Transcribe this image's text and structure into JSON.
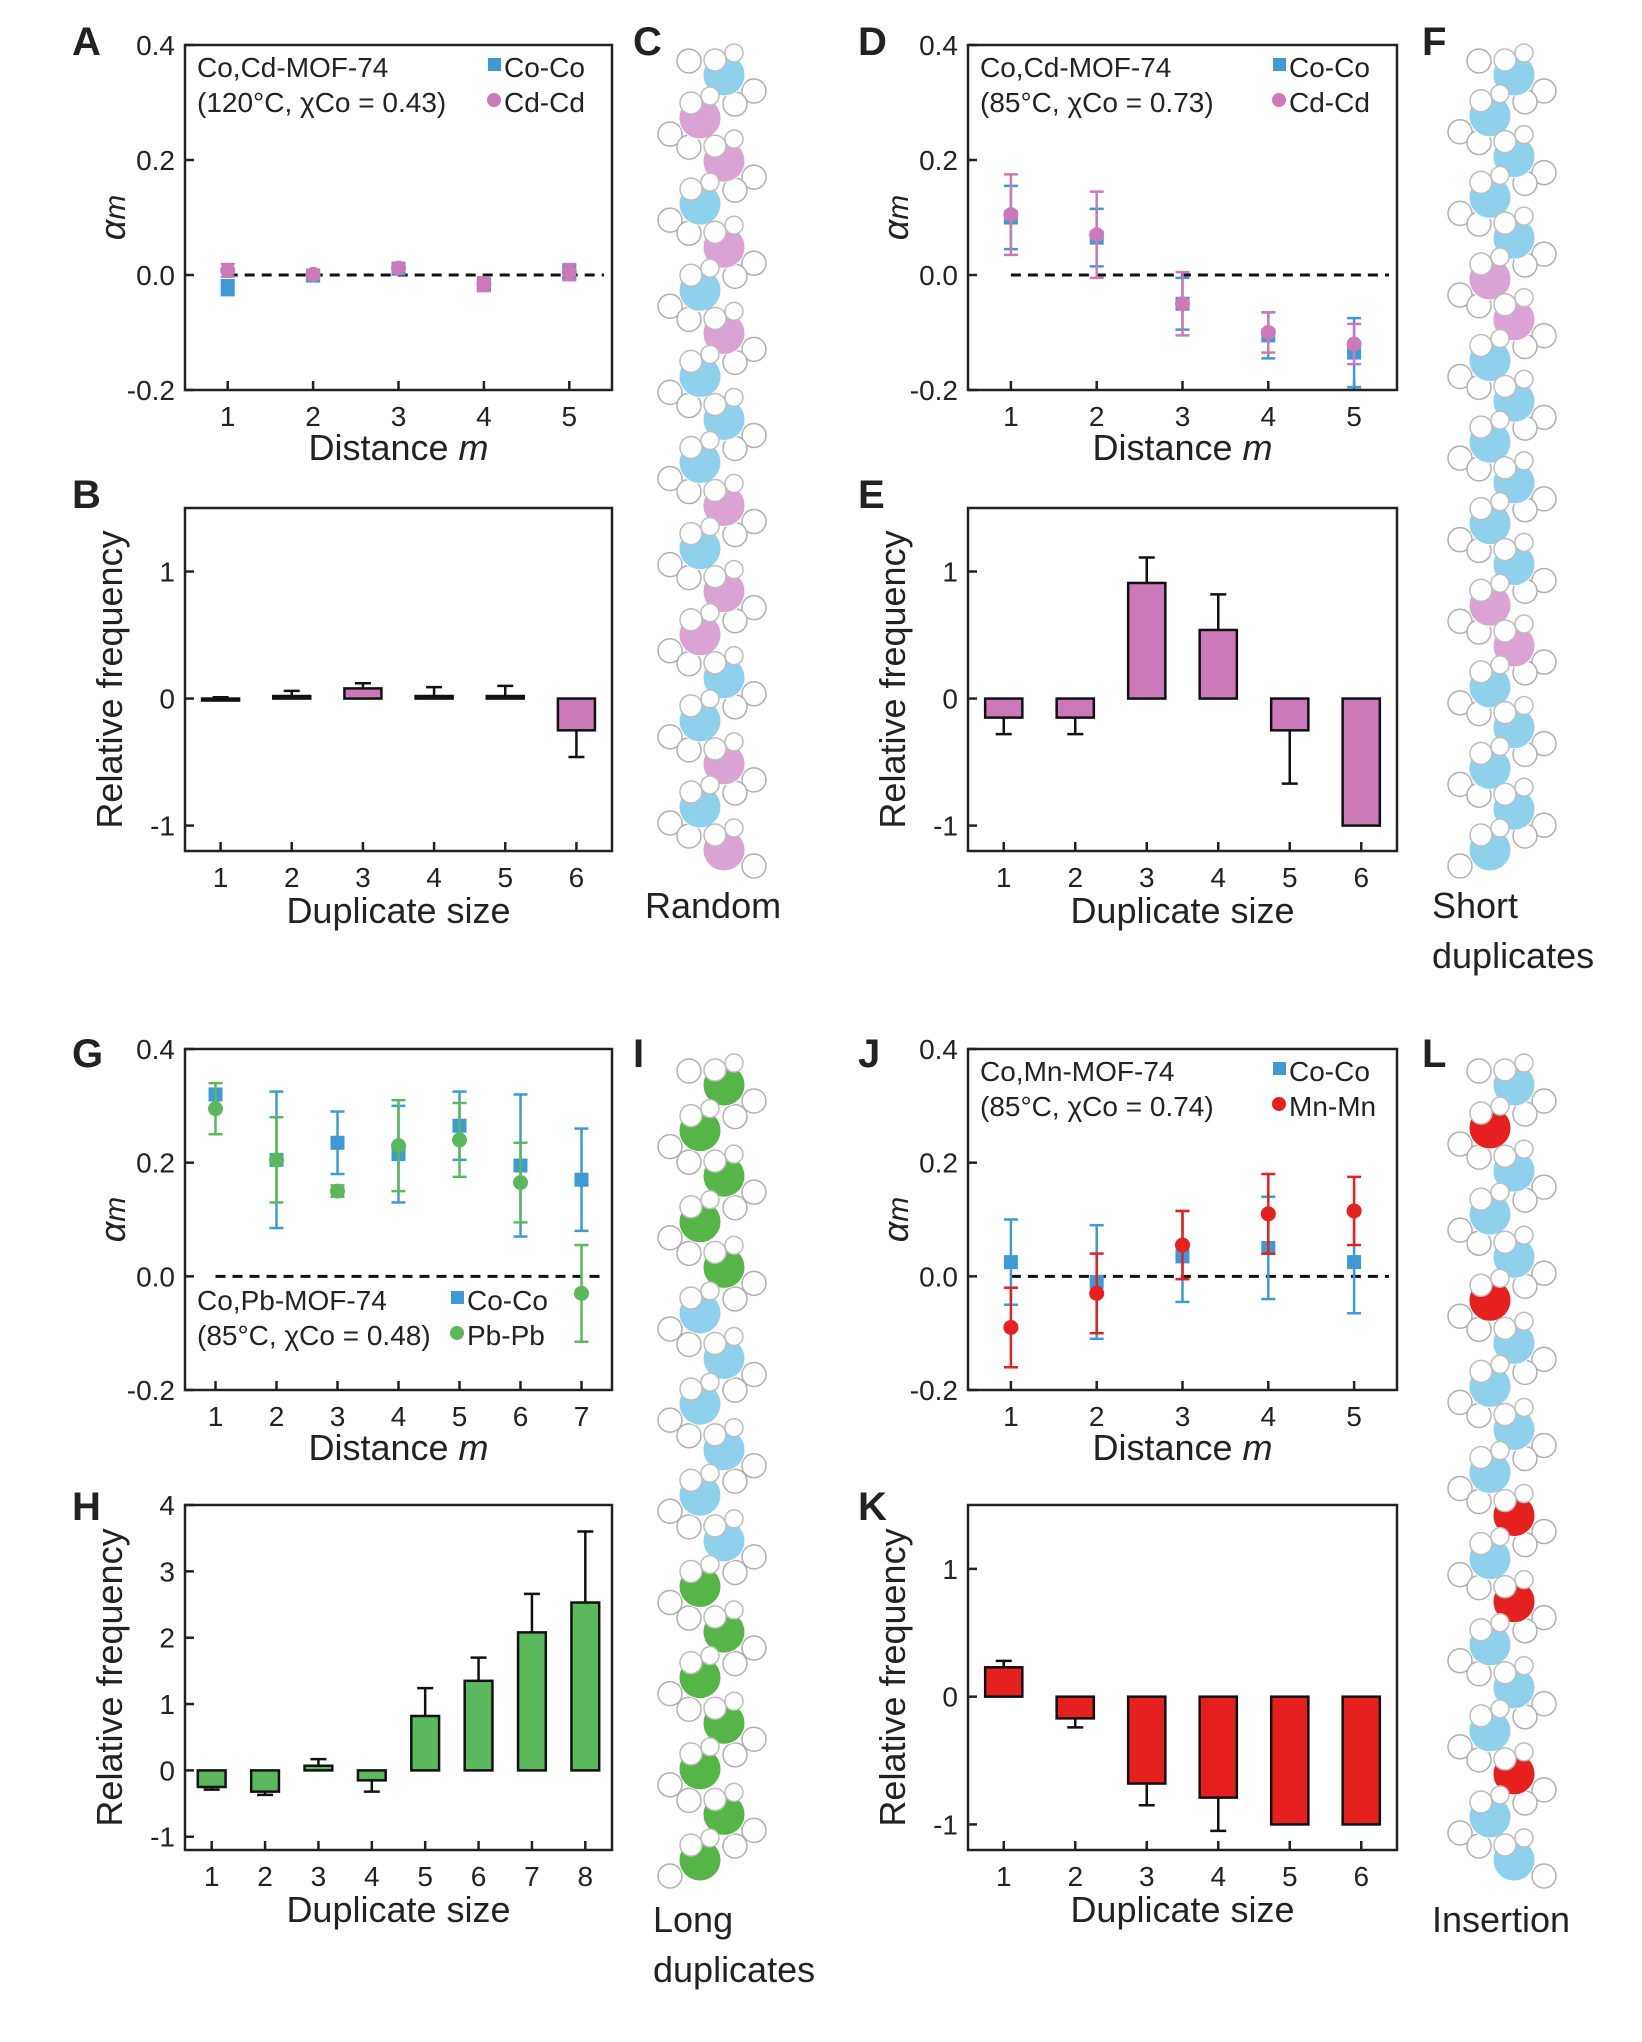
{
  "figure": {
    "panel_letters": {
      "A": "A",
      "B": "B",
      "C": "C",
      "D": "D",
      "E": "E",
      "F": "F",
      "G": "G",
      "H": "H",
      "I": "I",
      "J": "J",
      "K": "K",
      "L": "L"
    },
    "chain_captions": {
      "C": [
        "Random"
      ],
      "F": [
        "Short",
        "duplicates"
      ],
      "I": [
        "Long",
        "duplicates"
      ],
      "L": [
        "Insertion"
      ]
    },
    "chains": {
      "C": [
        "Co",
        "Cd",
        "Cd",
        "Co",
        "Cd",
        "Co",
        "Cd",
        "Co",
        "Co",
        "Co",
        "Cd",
        "Co",
        "Cd",
        "Cd",
        "Co",
        "Co",
        "Cd",
        "Co",
        "Cd"
      ],
      "F": [
        "Co",
        "Co",
        "Co",
        "Co",
        "Co",
        "Cd",
        "Cd",
        "Co",
        "Co",
        "Co",
        "Co",
        "Co",
        "Co",
        "Cd",
        "Cd",
        "Co",
        "Co",
        "Co",
        "Co",
        "Co"
      ],
      "I": [
        "Pb",
        "Pb",
        "Pb",
        "Pb",
        "Pb",
        "Co",
        "Co",
        "Co",
        "Co",
        "Co",
        "Co",
        "Pb",
        "Pb",
        "Pb",
        "Pb",
        "Pb",
        "Pb",
        "Pb"
      ],
      "L": [
        "Co",
        "Mn",
        "Co",
        "Co",
        "Co",
        "Mn",
        "Co",
        "Co",
        "Co",
        "Co",
        "Mn",
        "Co",
        "Mn",
        "Co",
        "Co",
        "Co",
        "Mn",
        "Co",
        "Co"
      ]
    },
    "colors": {
      "Co": "#8fd1ec",
      "Cd": "#dba2d4",
      "Pb": "#55b546",
      "Mn": "#e5201f",
      "bar_Cd": "#cc79b9",
      "bar_Pb": "#5cb85c",
      "bar_Mn": "#e5201f",
      "marker_Co": "#3e9ad4"
    }
  },
  "chart_data": [
    {
      "panel": "A",
      "type": "scatter",
      "annotation": [
        "Co,Cd-MOF-74",
        "(120°C, χCo = 0.43)"
      ],
      "xlabel": "Distance m",
      "ylabel": "αm",
      "xlim": [
        0.5,
        5.5
      ],
      "ylim": [
        -0.2,
        0.4
      ],
      "x": [
        1,
        2,
        3,
        4,
        5
      ],
      "xticks": [
        "1",
        "2",
        "3",
        "4",
        "5"
      ],
      "yticks": [
        "-0.2",
        "0.0",
        "0.2",
        "0.4"
      ],
      "ytick_values": [
        -0.2,
        0,
        0.2,
        0.4
      ],
      "series": [
        {
          "name": "Co-Co",
          "marker": "square",
          "color": "#3e9ad4",
          "values": [
            -0.022,
            -0.001,
            0.011,
            -0.016,
            0.005
          ],
          "errors": [
            0.013,
            0.008,
            0.007,
            0.011,
            0.012
          ]
        },
        {
          "name": "Cd-Cd",
          "marker": "circle",
          "color": "#cc79b9",
          "values": [
            0.008,
            0.001,
            0.012,
            -0.016,
            0.005
          ],
          "errors": [
            0.011,
            0.006,
            0.006,
            0.012,
            0.014
          ]
        }
      ],
      "zero_line": true
    },
    {
      "panel": "B",
      "type": "bar",
      "xlabel": "Duplicate size",
      "ylabel": "Relative frequency",
      "categories": [
        "1",
        "2",
        "3",
        "4",
        "5",
        "6"
      ],
      "values": [
        0.0,
        0.02,
        0.08,
        0.02,
        0.02,
        -0.25
      ],
      "errors": [
        0.01,
        0.04,
        0.04,
        0.07,
        0.08,
        0.21
      ],
      "color": "#cc79b9",
      "xlim": [
        0.5,
        6.5
      ],
      "ylim": [
        -1.2,
        1.5
      ],
      "yticks": [
        "-1",
        "0",
        "1"
      ],
      "ytick_values": [
        -1,
        0,
        1
      ]
    },
    {
      "panel": "D",
      "type": "scatter",
      "annotation": [
        "Co,Cd-MOF-74",
        "(85°C, χCo = 0.73)"
      ],
      "xlabel": "Distance m",
      "ylabel": "αm",
      "xlim": [
        0.5,
        5.5
      ],
      "ylim": [
        -0.2,
        0.4
      ],
      "x": [
        1,
        2,
        3,
        4,
        5
      ],
      "xticks": [
        "1",
        "2",
        "3",
        "4",
        "5"
      ],
      "yticks": [
        "-0.2",
        "0.0",
        "0.2",
        "0.4"
      ],
      "ytick_values": [
        -0.2,
        0,
        0.2,
        0.4
      ],
      "series": [
        {
          "name": "Co-Co",
          "marker": "square",
          "color": "#3e9ad4",
          "values": [
            0.1,
            0.065,
            -0.05,
            -0.105,
            -0.135
          ],
          "errors": [
            0.055,
            0.05,
            0.045,
            0.04,
            0.06
          ]
        },
        {
          "name": "Cd-Cd",
          "marker": "circle",
          "color": "#cc79b9",
          "values": [
            0.105,
            0.07,
            -0.05,
            -0.1,
            -0.12
          ],
          "errors": [
            0.07,
            0.075,
            0.055,
            0.035,
            0.035
          ]
        }
      ],
      "zero_line": true
    },
    {
      "panel": "E",
      "type": "bar",
      "xlabel": "Duplicate size",
      "ylabel": "Relative frequency",
      "categories": [
        "1",
        "2",
        "3",
        "4",
        "5",
        "6"
      ],
      "values": [
        -0.15,
        -0.15,
        0.91,
        0.54,
        -0.25,
        -1.0
      ],
      "errors": [
        0.13,
        0.13,
        0.2,
        0.28,
        0.42,
        0.0
      ],
      "color": "#cc79b9",
      "xlim": [
        0.5,
        6.5
      ],
      "ylim": [
        -1.2,
        1.5
      ],
      "yticks": [
        "-1",
        "0",
        "1"
      ],
      "ytick_values": [
        -1,
        0,
        1
      ]
    },
    {
      "panel": "G",
      "type": "scatter",
      "annotation": [
        "Co,Pb-MOF-74",
        "(85°C, χCo = 0.48)"
      ],
      "xlabel": "Distance m",
      "ylabel": "αm",
      "xlim": [
        0.5,
        7.5
      ],
      "ylim": [
        -0.2,
        0.4
      ],
      "x": [
        1,
        2,
        3,
        4,
        5,
        6,
        7
      ],
      "xticks": [
        "1",
        "2",
        "3",
        "4",
        "5",
        "6",
        "7"
      ],
      "yticks": [
        "-0.2",
        "0.0",
        "0.2",
        "0.4"
      ],
      "ytick_values": [
        -0.2,
        0,
        0.2,
        0.4
      ],
      "series": [
        {
          "name": "Co-Co",
          "marker": "square",
          "color": "#3e9ad4",
          "values": [
            0.32,
            0.205,
            0.235,
            0.215,
            0.265,
            0.195,
            0.17
          ],
          "errors": [
            0.01,
            0.12,
            0.055,
            0.085,
            0.06,
            0.125,
            0.09
          ]
        },
        {
          "name": "Pb-Pb",
          "marker": "circle",
          "color": "#5cb85c",
          "values": [
            0.295,
            0.205,
            0.15,
            0.23,
            0.24,
            0.165,
            -0.03
          ],
          "errors": [
            0.045,
            0.075,
            0.01,
            0.08,
            0.065,
            0.07,
            0.085
          ]
        }
      ],
      "zero_line": true
    },
    {
      "panel": "H",
      "type": "bar",
      "xlabel": "Duplicate size",
      "ylabel": "Relative frequency",
      "categories": [
        "1",
        "2",
        "3",
        "4",
        "5",
        "6",
        "7",
        "8"
      ],
      "values": [
        -0.25,
        -0.32,
        0.07,
        -0.15,
        0.82,
        1.35,
        2.08,
        2.53
      ],
      "errors": [
        0.04,
        0.05,
        0.1,
        0.17,
        0.42,
        0.35,
        0.58,
        1.07
      ],
      "color": "#5cb85c",
      "xlim": [
        0.5,
        8.5
      ],
      "ylim": [
        -1.2,
        4.0
      ],
      "yticks": [
        "-1",
        "0",
        "1",
        "2",
        "3",
        "4"
      ],
      "ytick_values": [
        -1,
        0,
        1,
        2,
        3,
        4
      ]
    },
    {
      "panel": "J",
      "type": "scatter",
      "annotation": [
        "Co,Mn-MOF-74",
        "(85°C, χCo = 0.74)"
      ],
      "xlabel": "Distance m",
      "ylabel": "αm",
      "xlim": [
        0.5,
        5.5
      ],
      "ylim": [
        -0.2,
        0.4
      ],
      "x": [
        1,
        2,
        3,
        4,
        5
      ],
      "xticks": [
        "1",
        "2",
        "3",
        "4",
        "5"
      ],
      "yticks": [
        "-0.2",
        "0.0",
        "0.2",
        "0.4"
      ],
      "ytick_values": [
        -0.2,
        0,
        0.2,
        0.4
      ],
      "series": [
        {
          "name": "Co-Co",
          "marker": "square",
          "color": "#3e9ad4",
          "values": [
            0.025,
            -0.01,
            0.035,
            0.05,
            0.025
          ],
          "errors": [
            0.075,
            0.1,
            0.08,
            0.09,
            0.09
          ]
        },
        {
          "name": "Mn-Mn",
          "marker": "circle",
          "color": "#e5201f",
          "values": [
            -0.09,
            -0.03,
            0.055,
            0.11,
            0.115
          ],
          "errors": [
            0.07,
            0.07,
            0.06,
            0.07,
            0.06
          ]
        }
      ],
      "zero_line": true
    },
    {
      "panel": "K",
      "type": "bar",
      "xlabel": "Duplicate size",
      "ylabel": "Relative frequency",
      "categories": [
        "1",
        "2",
        "3",
        "4",
        "5",
        "6"
      ],
      "values": [
        0.23,
        -0.17,
        -0.68,
        -0.79,
        -1.0,
        -1.0
      ],
      "errors": [
        0.05,
        0.07,
        0.17,
        0.26,
        0.0,
        0.0
      ],
      "color": "#e5201f",
      "xlim": [
        0.5,
        6.5
      ],
      "ylim": [
        -1.2,
        1.5
      ],
      "yticks": [
        "-1",
        "0",
        "1"
      ],
      "ytick_values": [
        -1,
        0,
        1
      ]
    }
  ]
}
